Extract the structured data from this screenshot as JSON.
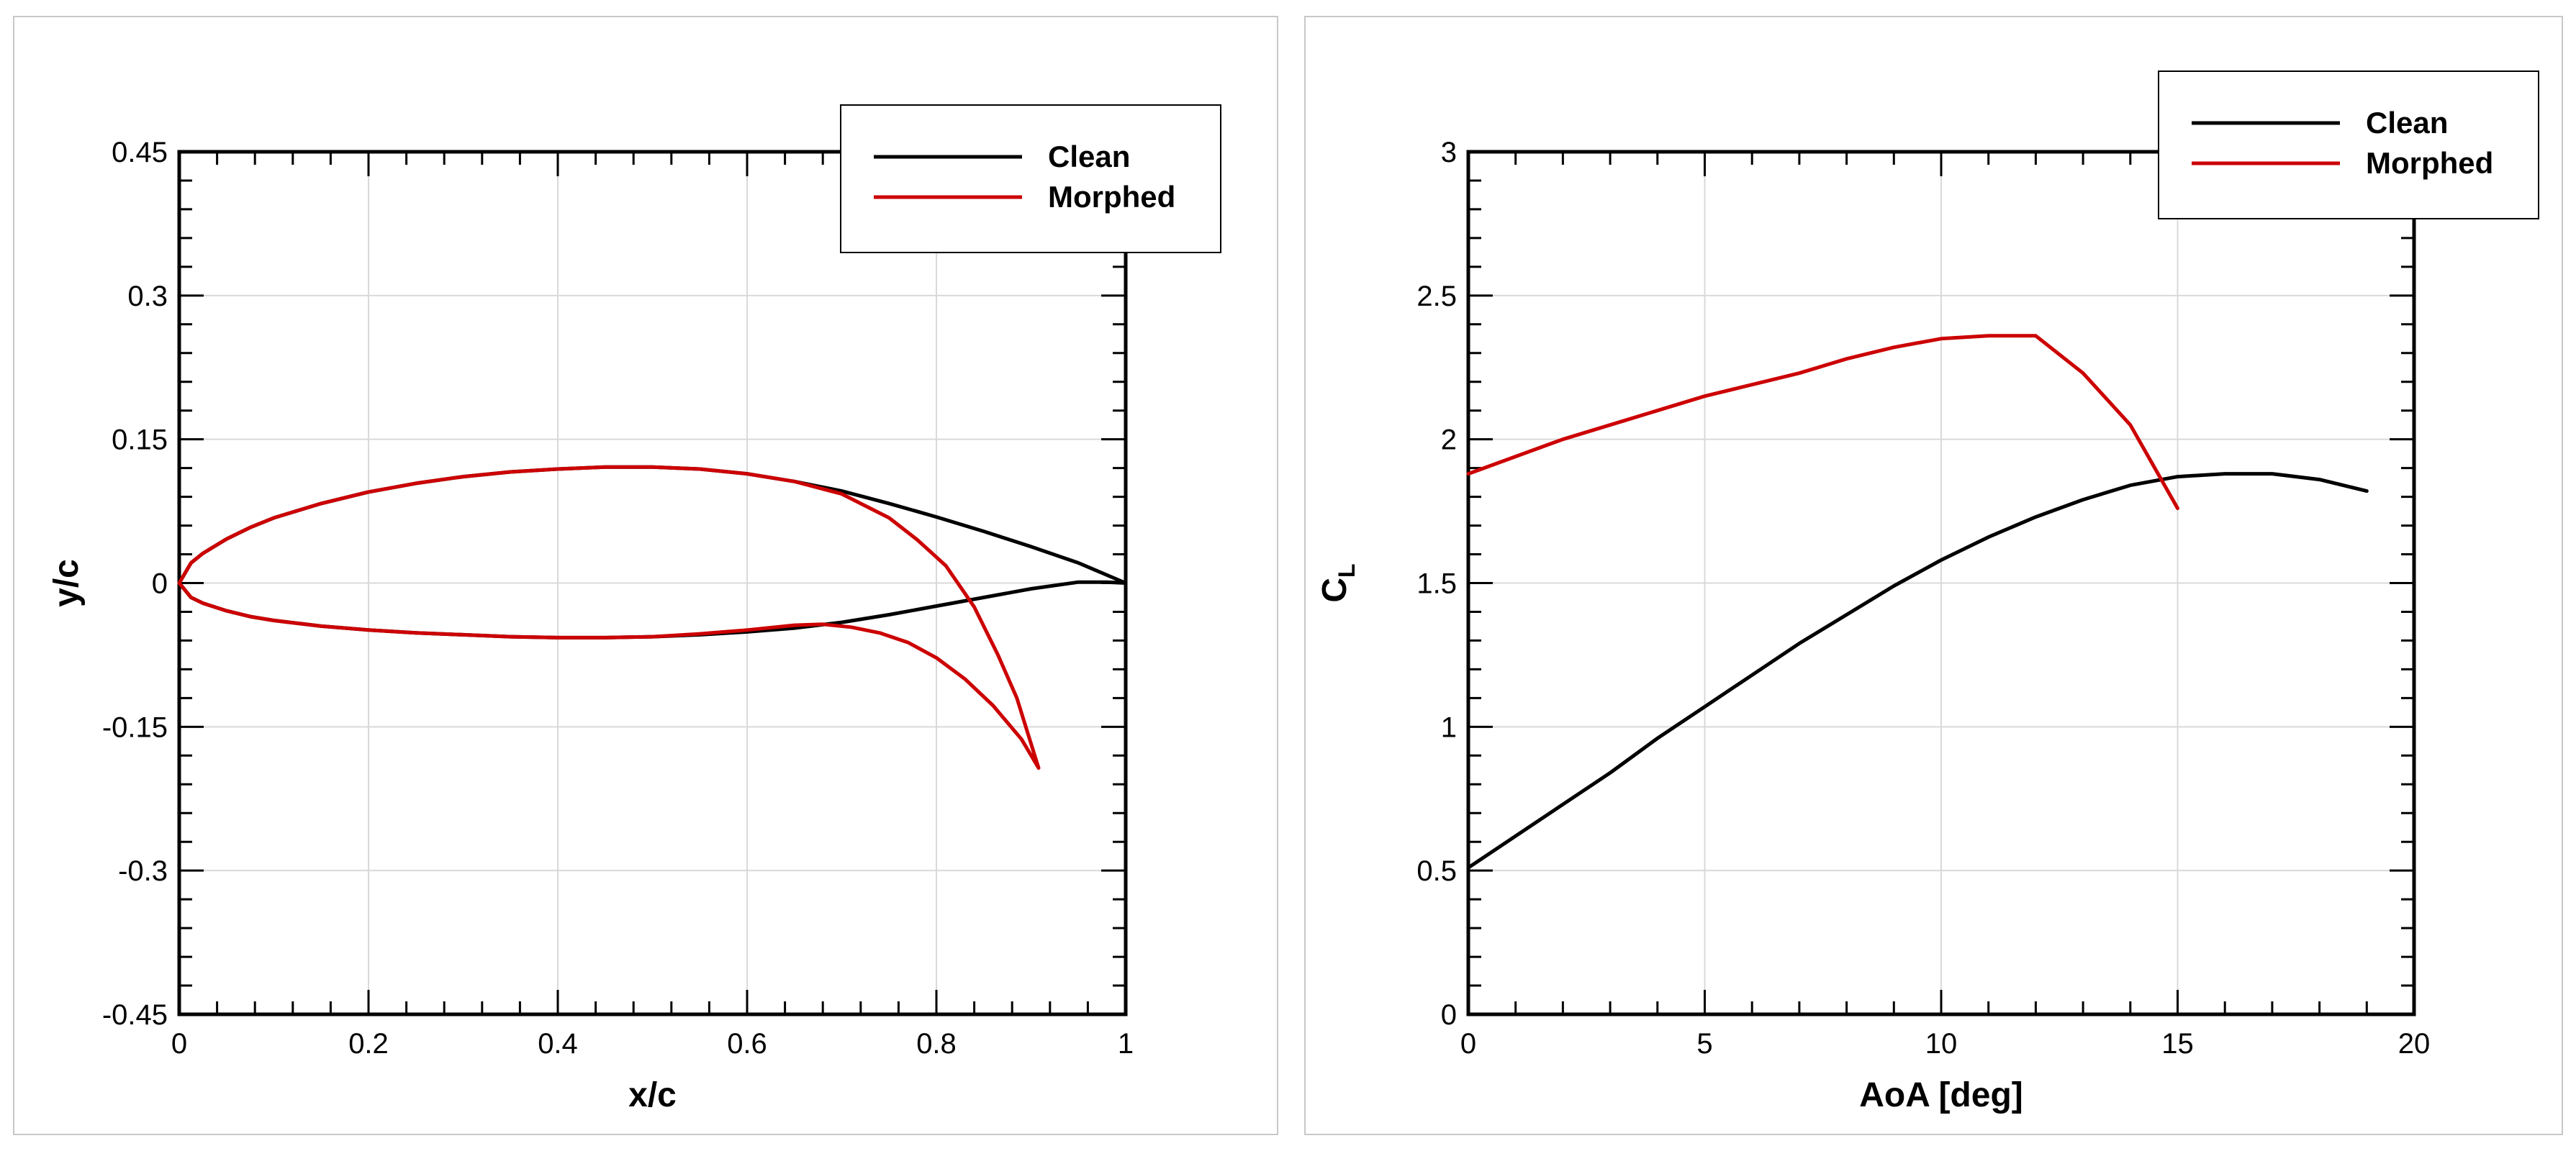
{
  "chart_data": [
    {
      "type": "line",
      "xlabel": "x/c",
      "ylabel": "y/c",
      "xlim": [
        0,
        1
      ],
      "ylim": [
        -0.45,
        0.45
      ],
      "xticks": [
        0,
        0.2,
        0.4,
        0.6,
        0.8,
        1
      ],
      "xtick_labels": [
        "0",
        "0.2",
        "0.4",
        "0.6",
        "0.8",
        "1"
      ],
      "yticks": [
        -0.45,
        -0.3,
        -0.15,
        0,
        0.15,
        0.3,
        0.45
      ],
      "ytick_labels": [
        "-0.45",
        "-0.3",
        "-0.15",
        "0",
        "0.15",
        "0.3",
        "0.45"
      ],
      "grid": true,
      "legend": "top-right",
      "series": [
        {
          "name": "Clean",
          "color": "#000000",
          "x": [
            0,
            0.0125,
            0.025,
            0.05,
            0.075,
            0.1,
            0.15,
            0.2,
            0.25,
            0.3,
            0.35,
            0.4,
            0.45,
            0.5,
            0.55,
            0.6,
            0.65,
            0.7,
            0.75,
            0.8,
            0.85,
            0.9,
            0.95,
            1.0,
            0.98,
            0.95,
            0.9,
            0.85,
            0.8,
            0.75,
            0.7,
            0.65,
            0.6,
            0.55,
            0.5,
            0.45,
            0.4,
            0.35,
            0.3,
            0.25,
            0.2,
            0.15,
            0.1,
            0.075,
            0.05,
            0.025,
            0.0125,
            0
          ],
          "y": [
            0,
            0.021,
            0.031,
            0.046,
            0.058,
            0.068,
            0.083,
            0.095,
            0.104,
            0.111,
            0.116,
            0.119,
            0.121,
            0.121,
            0.119,
            0.114,
            0.106,
            0.096,
            0.083,
            0.069,
            0.054,
            0.038,
            0.021,
            0.0,
            0.001,
            0.001,
            -0.006,
            -0.015,
            -0.024,
            -0.033,
            -0.041,
            -0.047,
            -0.051,
            -0.054,
            -0.056,
            -0.057,
            -0.057,
            -0.056,
            -0.054,
            -0.052,
            -0.049,
            -0.045,
            -0.039,
            -0.035,
            -0.029,
            -0.021,
            -0.015,
            0
          ]
        },
        {
          "name": "Morphed",
          "color": "#cc0000",
          "x": [
            0,
            0.0125,
            0.025,
            0.05,
            0.075,
            0.1,
            0.15,
            0.2,
            0.25,
            0.3,
            0.35,
            0.4,
            0.45,
            0.5,
            0.55,
            0.6,
            0.65,
            0.7,
            0.75,
            0.78,
            0.81,
            0.84,
            0.865,
            0.885,
            0.908,
            0.89,
            0.86,
            0.83,
            0.8,
            0.77,
            0.74,
            0.71,
            0.68,
            0.65,
            0.6,
            0.55,
            0.5,
            0.45,
            0.4,
            0.35,
            0.3,
            0.25,
            0.2,
            0.15,
            0.1,
            0.075,
            0.05,
            0.025,
            0.0125,
            0
          ],
          "y": [
            0,
            0.021,
            0.031,
            0.046,
            0.058,
            0.068,
            0.083,
            0.095,
            0.104,
            0.111,
            0.116,
            0.119,
            0.121,
            0.121,
            0.119,
            0.114,
            0.106,
            0.093,
            0.068,
            0.045,
            0.018,
            -0.025,
            -0.075,
            -0.12,
            -0.193,
            -0.163,
            -0.128,
            -0.1,
            -0.078,
            -0.062,
            -0.052,
            -0.046,
            -0.043,
            -0.044,
            -0.049,
            -0.053,
            -0.056,
            -0.057,
            -0.057,
            -0.056,
            -0.054,
            -0.052,
            -0.049,
            -0.045,
            -0.039,
            -0.035,
            -0.029,
            -0.021,
            -0.015,
            0
          ]
        }
      ]
    },
    {
      "type": "line",
      "xlabel": "AoA [deg]",
      "ylabel": "C",
      "ylabel_sub": "L",
      "xlim": [
        0,
        20
      ],
      "ylim": [
        0,
        3
      ],
      "xticks": [
        0,
        5,
        10,
        15,
        20
      ],
      "xtick_labels": [
        "0",
        "5",
        "10",
        "15",
        "20"
      ],
      "yticks": [
        0,
        0.5,
        1,
        1.5,
        2,
        2.5,
        3
      ],
      "ytick_labels": [
        "0",
        "0.5",
        "1",
        "1.5",
        "2",
        "2.5",
        "3"
      ],
      "grid": true,
      "legend": "top-right",
      "series": [
        {
          "name": "Clean",
          "color": "#000000",
          "x": [
            0,
            1,
            2,
            3,
            4,
            5,
            6,
            7,
            8,
            9,
            10,
            11,
            12,
            13,
            14,
            15,
            16,
            17,
            18,
            19
          ],
          "y": [
            0.51,
            0.62,
            0.73,
            0.84,
            0.96,
            1.07,
            1.18,
            1.29,
            1.39,
            1.49,
            1.58,
            1.66,
            1.73,
            1.79,
            1.84,
            1.87,
            1.88,
            1.88,
            1.86,
            1.82
          ]
        },
        {
          "name": "Morphed",
          "color": "#cc0000",
          "x": [
            0,
            1,
            2,
            3,
            4,
            5,
            6,
            7,
            8,
            9,
            10,
            11,
            12,
            13,
            14,
            15
          ],
          "y": [
            1.88,
            1.94,
            2.0,
            2.05,
            2.1,
            2.15,
            2.19,
            2.23,
            2.28,
            2.32,
            2.35,
            2.36,
            2.36,
            2.23,
            2.05,
            1.76
          ]
        }
      ]
    }
  ]
}
